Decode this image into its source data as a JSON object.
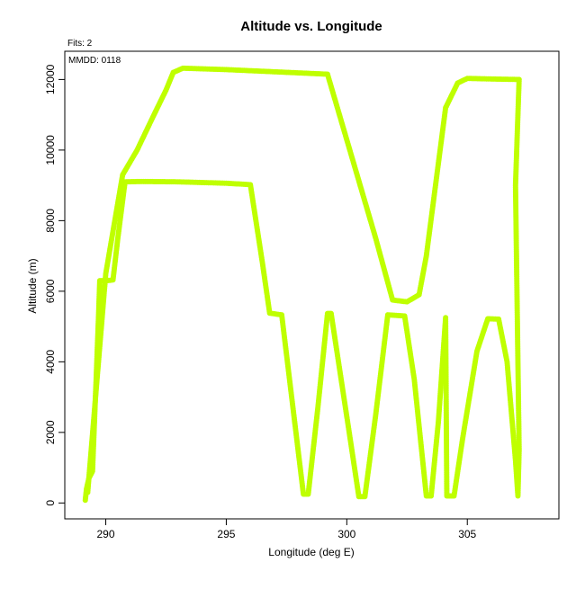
{
  "chart_data": {
    "type": "scatter",
    "title": "Altitude vs. Longitude",
    "xlabel": "Longitude (deg E)",
    "ylabel": "Altitude (m)",
    "xlim": [
      288.3,
      308.8
    ],
    "ylim": [
      -450,
      12800
    ],
    "x_ticks": [
      290,
      295,
      300,
      305
    ],
    "y_ticks": [
      0,
      2000,
      4000,
      6000,
      8000,
      10000,
      12000
    ],
    "x_tick_labels": [
      "290",
      "295",
      "300",
      "305"
    ],
    "y_tick_labels": [
      "0",
      "2000",
      "4000",
      "6000",
      "8000",
      "10000",
      "12000"
    ],
    "annotations": {
      "fits": "Fits: 2",
      "mmdd": "MMDD: 0118"
    },
    "grid": false,
    "legend": "none",
    "series": [
      {
        "color": "#BFFF00",
        "points": [
          [
            289.15,
            80
          ],
          [
            289.2,
            400
          ],
          [
            289.3,
            700
          ],
          [
            289.45,
            900
          ],
          [
            289.6,
            3500
          ],
          [
            289.7,
            5300
          ],
          [
            289.75,
            6300
          ],
          [
            290.05,
            6300
          ],
          [
            290.3,
            6320
          ],
          [
            290.5,
            7500
          ],
          [
            290.8,
            9100
          ],
          [
            291.5,
            9110
          ],
          [
            293.0,
            9100
          ],
          [
            295.0,
            9060
          ],
          [
            296.0,
            9020
          ],
          [
            296.5,
            6800
          ],
          [
            296.8,
            5380
          ],
          [
            297.3,
            5330
          ],
          [
            298.2,
            250
          ],
          [
            298.4,
            250
          ],
          [
            298.8,
            2700
          ],
          [
            299.2,
            5370
          ],
          [
            299.35,
            5370
          ],
          [
            300.1,
            2000
          ],
          [
            300.5,
            180
          ],
          [
            300.75,
            180
          ],
          [
            301.2,
            2500
          ],
          [
            301.7,
            5330
          ],
          [
            302.4,
            5300
          ],
          [
            302.8,
            3500
          ],
          [
            303.3,
            200
          ],
          [
            303.5,
            200
          ],
          [
            303.8,
            2300
          ],
          [
            304.1,
            5250
          ],
          [
            304.15,
            200
          ],
          [
            304.45,
            200
          ],
          [
            304.8,
            1800
          ],
          [
            305.4,
            4300
          ],
          [
            305.85,
            5220
          ],
          [
            306.3,
            5210
          ],
          [
            306.65,
            4000
          ],
          [
            307.0,
            1200
          ],
          [
            307.1,
            200
          ],
          [
            307.15,
            1500
          ],
          [
            307.0,
            9000
          ],
          [
            307.15,
            12000
          ],
          [
            306.3,
            12010
          ],
          [
            305.0,
            12030
          ],
          [
            304.6,
            11900
          ],
          [
            304.1,
            11200
          ],
          [
            303.3,
            7000
          ],
          [
            303.0,
            5900
          ],
          [
            302.5,
            5700
          ],
          [
            301.9,
            5750
          ],
          [
            301.2,
            7500
          ],
          [
            299.2,
            12150
          ],
          [
            295.0,
            12280
          ],
          [
            293.2,
            12320
          ],
          [
            292.8,
            12200
          ],
          [
            292.5,
            11700
          ],
          [
            292.0,
            11000
          ],
          [
            291.3,
            10000
          ],
          [
            290.7,
            9300
          ],
          [
            290.0,
            6500
          ],
          [
            289.25,
            300
          ]
        ]
      }
    ]
  }
}
